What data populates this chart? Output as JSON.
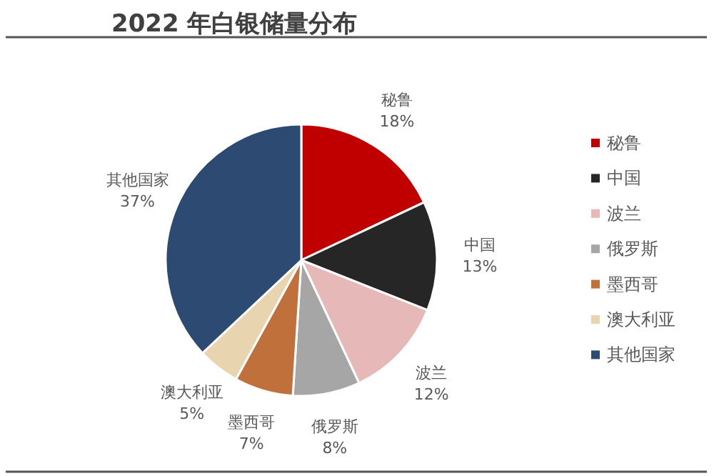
{
  "chart_data": {
    "type": "pie",
    "title": "2022 年白银储量分布",
    "categories": [
      "秘鲁",
      "中国",
      "波兰",
      "俄罗斯",
      "墨西哥",
      "澳大利亚",
      "其他国家"
    ],
    "values": [
      18,
      13,
      12,
      8,
      7,
      5,
      37
    ],
    "value_labels": [
      "18%",
      "13%",
      "12%",
      "8%",
      "7%",
      "5%",
      "37%"
    ],
    "colors": [
      "#c00000",
      "#262626",
      "#e6b9b8",
      "#a6a6a6",
      "#c0703a",
      "#e8d5b0",
      "#2c4a72"
    ],
    "legend": "right"
  }
}
